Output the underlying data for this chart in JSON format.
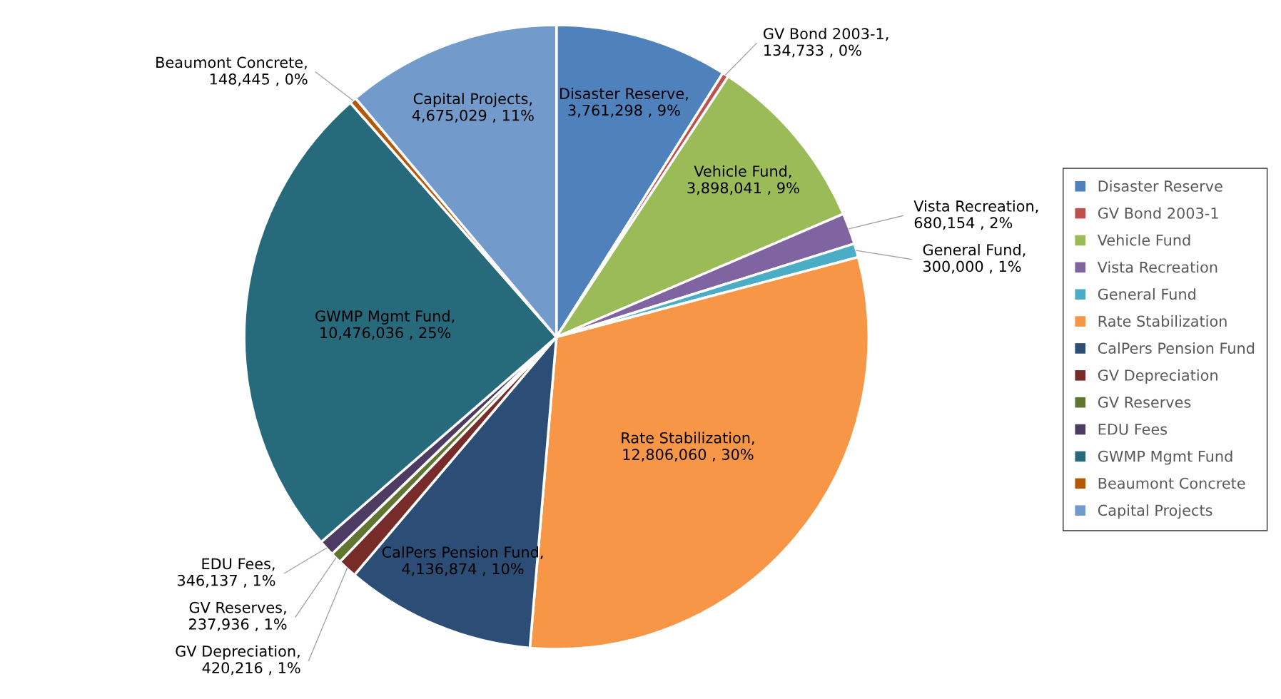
{
  "chart_data": {
    "type": "pie",
    "categories": [
      "Disaster Reserve",
      "GV Bond 2003-1",
      "Vehicle Fund",
      "Vista Recreation",
      "General Fund",
      "Rate Stabilization",
      "CalPers Pension Fund",
      "GV Depreciation",
      "GV Reserves",
      "EDU Fees",
      "GWMP Mgmt Fund",
      "Beaumont Concrete",
      "Capital Projects"
    ],
    "values": [
      3761298,
      134733,
      3898041,
      680154,
      300000,
      12806060,
      4136874,
      420216,
      237936,
      346137,
      10476036,
      148445,
      4675029
    ],
    "colors": [
      "#4f81bd",
      "#c0504d",
      "#9bbb59",
      "#8064a2",
      "#4bacc6",
      "#f79646",
      "#2c4d75",
      "#772c2a",
      "#5f7530",
      "#4d3b62",
      "#276a7c",
      "#b65708",
      "#729aca"
    ],
    "value_labels": [
      "Disaster Reserve, 3,761,298 , 9%",
      "GV Bond 2003-1, 134,733 , 0%",
      "Vehicle Fund, 3,898,041 , 9%",
      "Vista Recreation, 680,154 , 2%",
      "General Fund, 300,000 , 1%",
      "Rate Stabilization, 12,806,060 , 30%",
      "CalPers Pension Fund, 4,136,874 , 10%",
      "GV Depreciation, 420,216 , 1%",
      "GV Reserves, 237,936 , 1%",
      "EDU Fees, 346,137 , 1%",
      "GWMP Mgmt Fund, 10,476,036 , 25%",
      "Beaumont Concrete, 148,445 , 0%",
      "Capital Projects, 4,675,029 , 11%"
    ],
    "legend": "right"
  }
}
